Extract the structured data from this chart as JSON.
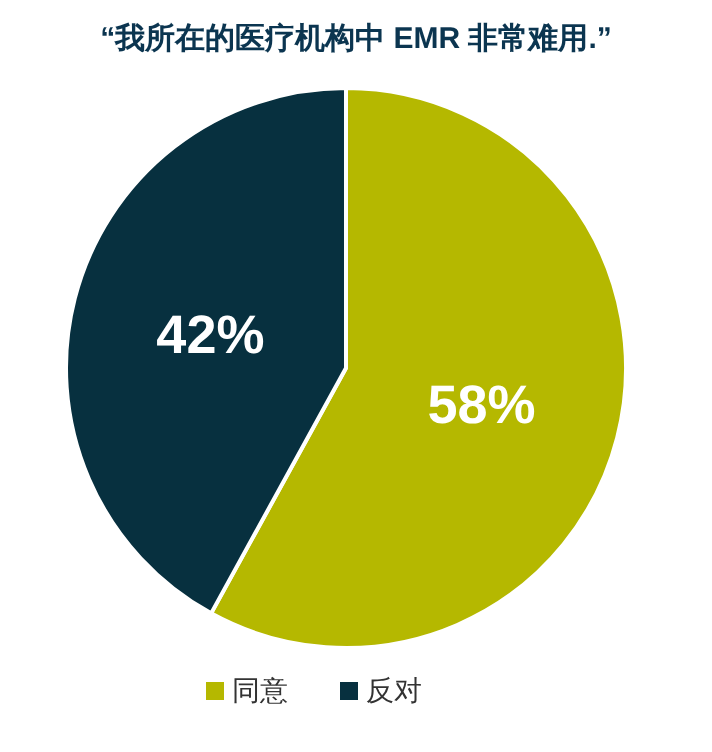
{
  "chart_data": {
    "type": "pie",
    "title": "“我所在的医疗机构中 EMR 非常难用.”",
    "categories": [
      "同意",
      "反对"
    ],
    "values": [
      58,
      42
    ],
    "colors": [
      "#b5b800",
      "#07303f"
    ],
    "value_labels": [
      "58%",
      "42%"
    ],
    "legend": "bottom"
  }
}
